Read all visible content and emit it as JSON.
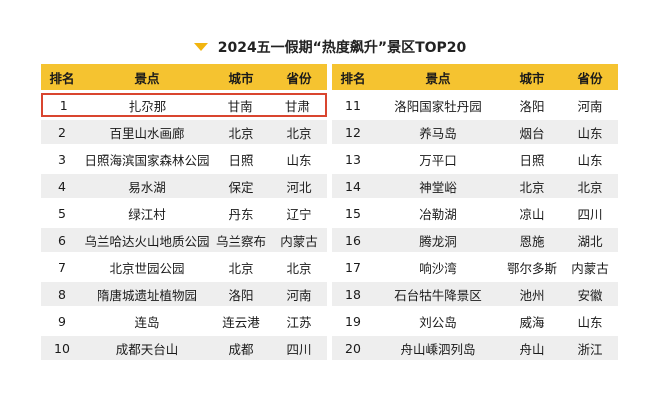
{
  "title": "2024五一假期“热度飙升”景区TOP20",
  "headers": {
    "rank": "排名",
    "spot": "景点",
    "city": "城市",
    "province": "省份"
  },
  "left_rows": [
    {
      "rank": "1",
      "spot": "扎尕那",
      "city": "甘南",
      "province": "甘肃"
    },
    {
      "rank": "2",
      "spot": "百里山水画廊",
      "city": "北京",
      "province": "北京"
    },
    {
      "rank": "3",
      "spot": "日照海滨国家森林公园",
      "city": "日照",
      "province": "山东"
    },
    {
      "rank": "4",
      "spot": "易水湖",
      "city": "保定",
      "province": "河北"
    },
    {
      "rank": "5",
      "spot": "绿江村",
      "city": "丹东",
      "province": "辽宁"
    },
    {
      "rank": "6",
      "spot": "乌兰哈达火山地质公园",
      "city": "乌兰察布",
      "province": "内蒙古"
    },
    {
      "rank": "7",
      "spot": "北京世园公园",
      "city": "北京",
      "province": "北京"
    },
    {
      "rank": "8",
      "spot": "隋唐城遗址植物园",
      "city": "洛阳",
      "province": "河南"
    },
    {
      "rank": "9",
      "spot": "连岛",
      "city": "连云港",
      "province": "江苏"
    },
    {
      "rank": "10",
      "spot": "成都天台山",
      "city": "成都",
      "province": "四川"
    }
  ],
  "right_rows": [
    {
      "rank": "11",
      "spot": "洛阳国家牡丹园",
      "city": "洛阳",
      "province": "河南"
    },
    {
      "rank": "12",
      "spot": "养马岛",
      "city": "烟台",
      "province": "山东"
    },
    {
      "rank": "13",
      "spot": "万平口",
      "city": "日照",
      "province": "山东"
    },
    {
      "rank": "14",
      "spot": "神堂峪",
      "city": "北京",
      "province": "北京"
    },
    {
      "rank": "15",
      "spot": "冶勒湖",
      "city": "凉山",
      "province": "四川"
    },
    {
      "rank": "16",
      "spot": "腾龙洞",
      "city": "恩施",
      "province": "湖北"
    },
    {
      "rank": "17",
      "spot": "响沙湾",
      "city": "鄂尔多斯",
      "province": "内蒙古"
    },
    {
      "rank": "18",
      "spot": "石台牯牛降景区",
      "city": "池州",
      "province": "安徽"
    },
    {
      "rank": "19",
      "spot": "刘公岛",
      "city": "威海",
      "province": "山东"
    },
    {
      "rank": "20",
      "spot": "舟山嵊泗列岛",
      "city": "舟山",
      "province": "浙江"
    }
  ],
  "colors": {
    "header_bg": "#f5c330",
    "stripe": "#eeeeee",
    "highlight_border": "#d9452f",
    "triangle": "#f2b50f"
  },
  "icons": {
    "title_marker": "triangle-down-icon"
  }
}
